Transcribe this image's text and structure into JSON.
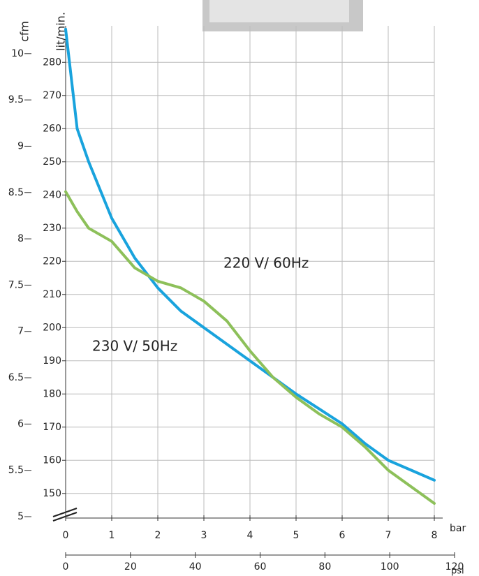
{
  "chart_data": {
    "type": "line",
    "x_label": "bar",
    "x2_label": "psi",
    "y_label": "lit/min.",
    "y2_label": "cfm",
    "x": [
      0,
      0.25,
      0.5,
      1,
      1.5,
      2,
      2.5,
      3,
      3.5,
      4,
      4.5,
      5,
      5.5,
      6,
      6.5,
      7,
      7.5,
      8
    ],
    "series": [
      {
        "name": "220 V/ 60Hz",
        "color": "#19a3dd",
        "values": [
          290,
          260,
          250,
          233,
          221,
          212,
          205,
          200,
          195,
          190,
          185,
          180,
          175.5,
          171,
          165,
          160,
          157,
          154
        ]
      },
      {
        "name": "230 V/ 50Hz",
        "color": "#8dc05a",
        "values": [
          241,
          235,
          230,
          226,
          218,
          214,
          212,
          208,
          202,
          193,
          185,
          179,
          174,
          170,
          164,
          157,
          152,
          147
        ]
      }
    ],
    "xlim": [
      0,
      8
    ],
    "xticks": [
      0,
      1,
      2,
      3,
      4,
      5,
      6,
      7,
      8
    ],
    "x2lim": [
      0,
      120
    ],
    "x2ticks": [
      0,
      20,
      40,
      60,
      80,
      100,
      120
    ],
    "ylim": [
      143,
      291
    ],
    "yticks": [
      150,
      160,
      170,
      180,
      190,
      200,
      210,
      220,
      230,
      240,
      250,
      260,
      270,
      280
    ],
    "y2lim": [
      5,
      10.3
    ],
    "y2ticks": [
      5,
      5.5,
      6,
      6.5,
      7,
      7.5,
      8,
      8.5,
      9,
      9.5,
      10
    ],
    "grid": true
  }
}
